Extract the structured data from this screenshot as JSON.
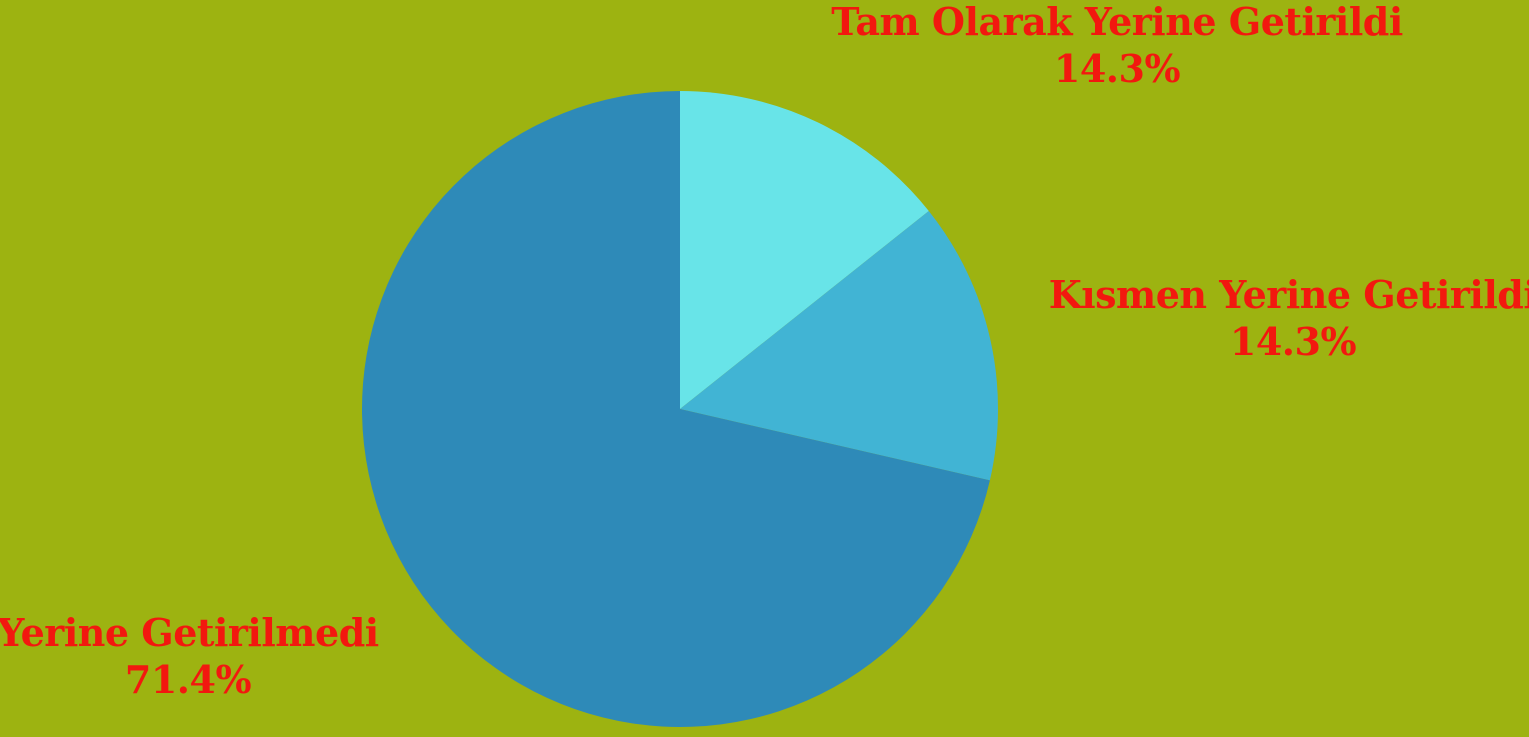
{
  "chart_data": {
    "type": "pie",
    "start_angle": "12 o'clock",
    "direction": "clockwise",
    "slices": [
      {
        "label": "Tam Olarak Yerine Getirildi",
        "value": 14.3,
        "display": "14.3%",
        "color": "#68e4e8"
      },
      {
        "label": "Kısmen Yerine Getirildi",
        "value": 14.3,
        "display": "14.3%",
        "color": "#41b4d4"
      },
      {
        "label": "Yerine Getirilmedi",
        "value": 71.4,
        "display": "71.4%",
        "color": "#2e8ab8"
      }
    ]
  },
  "colors": {
    "background": "#9db311",
    "label_text": "#f2180f"
  }
}
